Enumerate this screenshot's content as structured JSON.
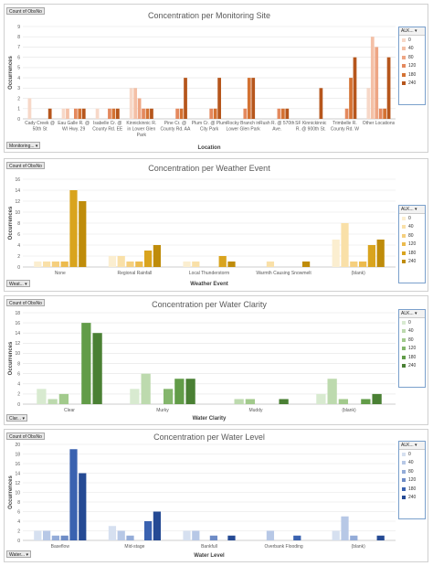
{
  "legend_items": [
    "0",
    "40",
    "80",
    "120",
    "180",
    "240"
  ],
  "chart_data": [
    {
      "type": "bar",
      "title": "Concentration per Monitoring Site",
      "xlabel": "Location",
      "ylabel": "Occurrences",
      "ylim": [
        0,
        9
      ],
      "yticks": [
        0,
        1,
        2,
        3,
        4,
        5,
        6,
        7,
        8,
        9
      ],
      "categories": [
        "Cady Creek @ 50th St",
        "Eau Galle R. @ WI Hwy. 29",
        "Isabelle Cr. @ County Rd. EE",
        "Kinnickinnic R. in Lower Glen Park",
        "Pine Cr. @ County Rd. AA",
        "Plum Cr. @ Plum City Park",
        "Rocky Branch in Lower Glen Park",
        "Rush R. @ 570th Ave.",
        "SF Kinnickinnic R. @ 900th St.",
        "Trimbelle R. County Rd. W",
        "Other Locations"
      ],
      "series": [
        {
          "name": "0",
          "values": [
            2,
            1,
            1,
            3,
            0,
            0,
            0,
            0,
            0,
            0,
            3
          ]
        },
        {
          "name": "40",
          "values": [
            0,
            1,
            0,
            3,
            0,
            0,
            0,
            0,
            0,
            0,
            8
          ]
        },
        {
          "name": "80",
          "values": [
            0,
            0,
            0,
            2,
            0,
            0,
            0,
            0,
            0,
            0,
            7
          ]
        },
        {
          "name": "120",
          "values": [
            0,
            1,
            1,
            1,
            1,
            1,
            1,
            1,
            0,
            1,
            1
          ]
        },
        {
          "name": "180",
          "values": [
            0,
            1,
            1,
            1,
            1,
            1,
            4,
            1,
            0,
            4,
            1
          ]
        },
        {
          "name": "240",
          "values": [
            1,
            1,
            1,
            1,
            4,
            4,
            4,
            1,
            3,
            6,
            6
          ]
        }
      ],
      "colors": [
        "#f7d8c8",
        "#f4c0a6",
        "#eea684",
        "#e4895e",
        "#d47233",
        "#b6561c"
      ],
      "filter_label": "Monitoring..."
    },
    {
      "type": "bar",
      "title": "Concentration per Weather Event",
      "xlabel": "Weather Event",
      "ylabel": "Occurrences",
      "ylim": [
        0,
        16
      ],
      "yticks": [
        0,
        2,
        4,
        6,
        8,
        10,
        12,
        14,
        16
      ],
      "categories": [
        "None",
        "Regional Rainfall",
        "Local Thunderstorm",
        "Warmth Causing Snowmelt",
        "(blank)"
      ],
      "series": [
        {
          "name": "0",
          "values": [
            1,
            2,
            1,
            0,
            5
          ]
        },
        {
          "name": "40",
          "values": [
            1,
            2,
            1,
            1,
            8
          ]
        },
        {
          "name": "80",
          "values": [
            1,
            1,
            0,
            0,
            1
          ]
        },
        {
          "name": "120",
          "values": [
            1,
            1,
            0,
            0,
            1
          ]
        },
        {
          "name": "180",
          "values": [
            14,
            3,
            2,
            0,
            4
          ]
        },
        {
          "name": "240",
          "values": [
            12,
            4,
            1,
            1,
            5
          ]
        }
      ],
      "colors": [
        "#fbeed0",
        "#f9e0a8",
        "#f5cf7e",
        "#ecbb4e",
        "#d9a41e",
        "#bf8c0a"
      ],
      "filter_label": "Weat..."
    },
    {
      "type": "bar",
      "title": "Concentration per Water Clarity",
      "xlabel": "Water Clarity",
      "ylabel": "Occurrences",
      "ylim": [
        0,
        18
      ],
      "yticks": [
        0,
        2,
        4,
        6,
        8,
        10,
        12,
        14,
        16,
        18
      ],
      "categories": [
        "Clear",
        "Murky",
        "Muddy",
        "(blank)"
      ],
      "series": [
        {
          "name": "0",
          "values": [
            3,
            3,
            0,
            2
          ]
        },
        {
          "name": "40",
          "values": [
            1,
            6,
            1,
            5
          ]
        },
        {
          "name": "80",
          "values": [
            2,
            0,
            1,
            1
          ]
        },
        {
          "name": "120",
          "values": [
            0,
            3,
            0,
            0
          ]
        },
        {
          "name": "180",
          "values": [
            16,
            5,
            0,
            1
          ]
        },
        {
          "name": "240",
          "values": [
            14,
            5,
            1,
            2
          ]
        }
      ],
      "colors": [
        "#d8ead0",
        "#bddaae",
        "#a2ca8c",
        "#84b66c",
        "#629c48",
        "#4a8034"
      ],
      "filter_label": "Clar..."
    },
    {
      "type": "bar",
      "title": "Concentration per Water Level",
      "xlabel": "Water Level",
      "ylabel": "Occurrences",
      "ylim": [
        0,
        20
      ],
      "yticks": [
        0,
        2,
        4,
        6,
        8,
        10,
        12,
        14,
        16,
        18,
        20
      ],
      "categories": [
        "Baseflow",
        "Mid-stage",
        "Bankfull",
        "Overbank Flooding",
        "(blank)"
      ],
      "series": [
        {
          "name": "0",
          "values": [
            2,
            3,
            2,
            0,
            2
          ]
        },
        {
          "name": "40",
          "values": [
            2,
            2,
            2,
            2,
            5
          ]
        },
        {
          "name": "80",
          "values": [
            1,
            1,
            0,
            0,
            1
          ]
        },
        {
          "name": "120",
          "values": [
            1,
            0,
            1,
            0,
            0
          ]
        },
        {
          "name": "180",
          "values": [
            19,
            4,
            0,
            1,
            0
          ]
        },
        {
          "name": "240",
          "values": [
            14,
            6,
            1,
            0,
            1
          ]
        }
      ],
      "colors": [
        "#d6e0f0",
        "#b7c8e6",
        "#94acd8",
        "#6e8cc6",
        "#3a62b0",
        "#254a94"
      ],
      "filter_label": "Water..."
    }
  ],
  "count_label": "Count of ObsNo",
  "legend_header": "ALK..."
}
